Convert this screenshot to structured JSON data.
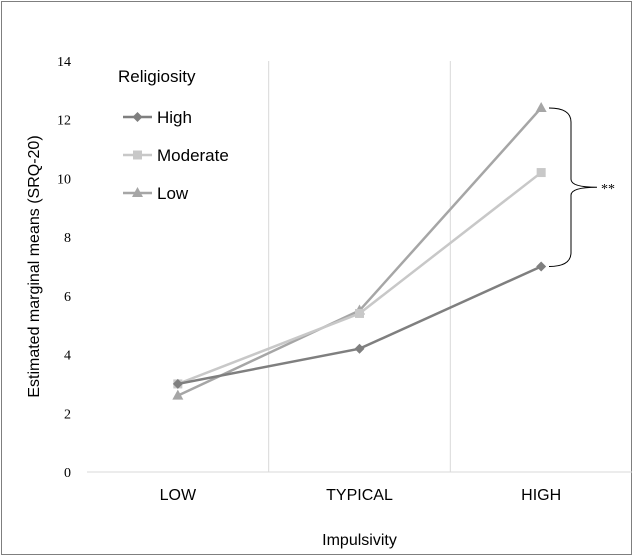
{
  "chart_data": {
    "type": "line",
    "xlabel": "Impulsivity",
    "ylabel": "Estimated marginal means (SRQ-20)",
    "categories": [
      "LOW",
      "TYPICAL",
      "HIGH"
    ],
    "ylim": [
      0,
      14
    ],
    "yticks": [
      "0",
      "2",
      "4",
      "6",
      "8",
      "10",
      "12",
      "14"
    ],
    "grid": "vertical",
    "legend": {
      "title": "Religiosity",
      "placement": "top-left"
    },
    "series": [
      {
        "name": "High",
        "marker": "diamond",
        "color": "#7f7f7f",
        "values": [
          3.0,
          4.2,
          7.0
        ]
      },
      {
        "name": "Moderate",
        "marker": "square",
        "color": "#c8c8c8",
        "values": [
          3.0,
          5.4,
          10.2
        ]
      },
      {
        "name": "Low",
        "marker": "triangle",
        "color": "#a6a6a6",
        "values": [
          2.6,
          5.5,
          12.4
        ]
      }
    ],
    "annotation": {
      "text": "**",
      "bracket_from": 7.0,
      "bracket_to": 12.4
    }
  }
}
